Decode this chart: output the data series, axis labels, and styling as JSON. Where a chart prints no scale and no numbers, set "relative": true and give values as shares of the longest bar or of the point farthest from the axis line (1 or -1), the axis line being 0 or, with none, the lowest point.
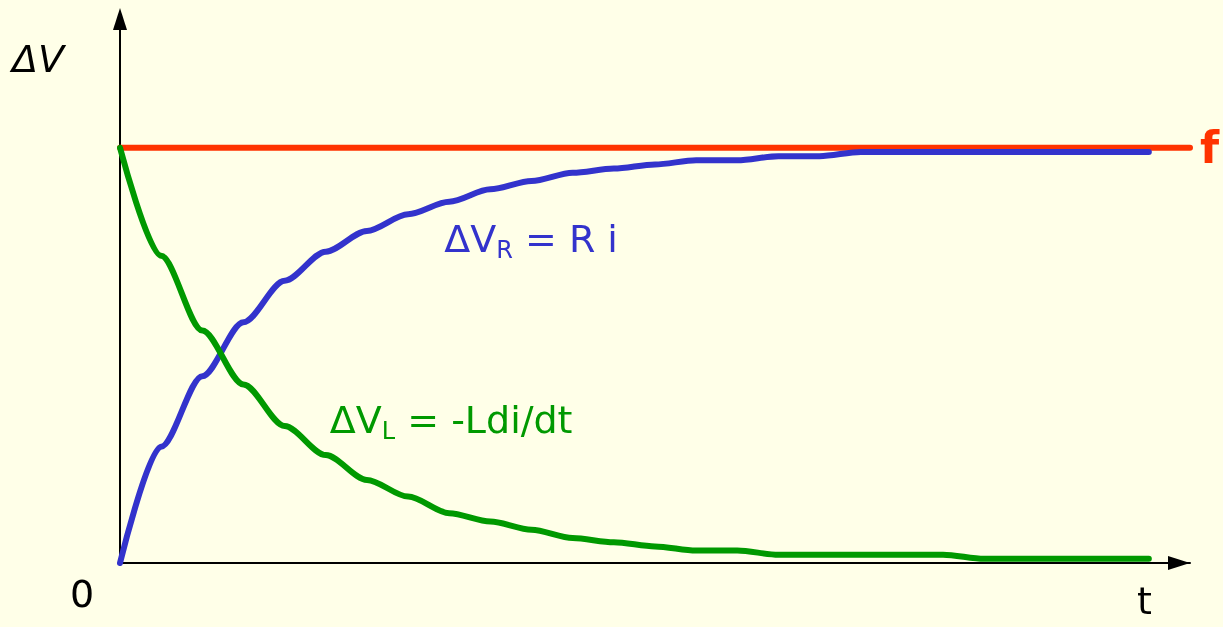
{
  "chart_data": {
    "type": "line",
    "relative": true,
    "xlabel": "t",
    "ylabel": "ΔV",
    "annotations": [
      "0"
    ],
    "categories": [
      null,
      null,
      null,
      null,
      null,
      null,
      null,
      null,
      null,
      null,
      null,
      null,
      null,
      null,
      null,
      null,
      null,
      null,
      null,
      null,
      null,
      null,
      null,
      null,
      null,
      null,
      null
    ],
    "series": [
      {
        "name": "f",
        "color": "#ff3300",
        "values": [
          1,
          1,
          1,
          1,
          1,
          1,
          1,
          1,
          1,
          1,
          1,
          1,
          1,
          1,
          1,
          1,
          1,
          1,
          1,
          1,
          1,
          1,
          1,
          1,
          1,
          1,
          1
        ]
      },
      {
        "name": "ΔV$_{R}$ = R i",
        "color": "#3333cc",
        "values": [
          0,
          0.28,
          0.45,
          0.58,
          0.68,
          0.75,
          0.8,
          0.84,
          0.87,
          0.9,
          0.92,
          0.94,
          0.95,
          0.96,
          0.97,
          0.97,
          0.98,
          0.98,
          0.99,
          0.99,
          0.99,
          0.99,
          0.99,
          0.99,
          0.99,
          0.99,
          null
        ]
      },
      {
        "name": "ΔV$_{L}$ = -Ldi/dt",
        "color": "#009900",
        "values": [
          1,
          0.74,
          0.56,
          0.43,
          0.33,
          0.26,
          0.2,
          0.16,
          0.12,
          0.1,
          0.08,
          0.06,
          0.05,
          0.04,
          0.03,
          0.03,
          0.02,
          0.02,
          0.02,
          0.02,
          0.02,
          0.01,
          0.01,
          0.01,
          0.01,
          0.01,
          null
        ]
      }
    ],
    "grid": false,
    "marker": "none",
    "line_style": "solid"
  }
}
